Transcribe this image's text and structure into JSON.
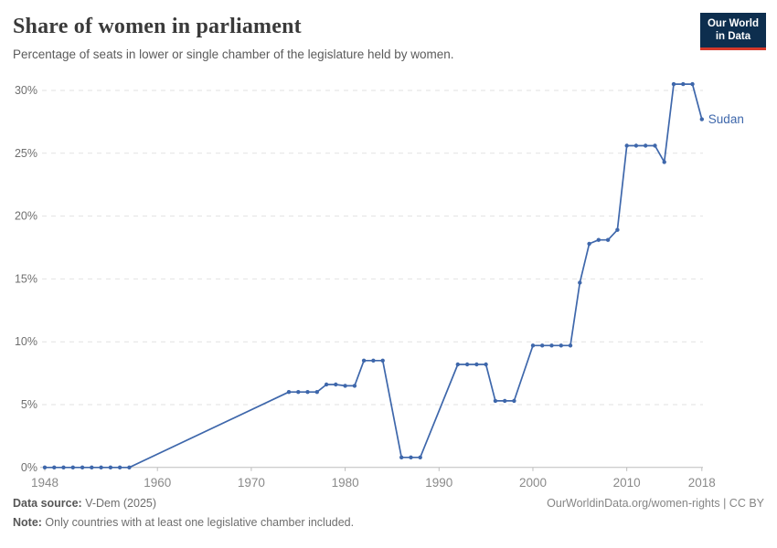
{
  "header": {
    "title": "Share of women in parliament",
    "subtitle": "Percentage of seats in lower or single chamber of the legislature held by women."
  },
  "logo": {
    "line1": "Our World",
    "line2": "in Data",
    "bg_color": "#0d2e4e",
    "accent_color": "#d4382a"
  },
  "footer": {
    "source_label": "Data source:",
    "source_value": " V-Dem (2025)",
    "note_label": "Note:",
    "note_value": " Only countries with at least one legislative chamber included.",
    "link": "OurWorldinData.org/women-rights",
    "separator": " | ",
    "license": "CC BY"
  },
  "chart_data": {
    "type": "line",
    "title": "Share of women in parliament",
    "xlabel": "",
    "ylabel": "",
    "xlim": [
      1948,
      2018
    ],
    "ylim": [
      0,
      30
    ],
    "grid": "horizontal-dashed",
    "legend": "end-of-line-label",
    "x_ticks": [
      1948,
      1960,
      1970,
      1980,
      1990,
      2000,
      2010,
      2018
    ],
    "y_ticks": [
      0,
      5,
      10,
      15,
      20,
      25,
      30
    ],
    "y_tick_suffix": "%",
    "colors": {
      "line": "#3e67ab",
      "gridline": "#e2e2e2",
      "axis": "#bdbdbd",
      "y_tick_label": "#6f6f6f",
      "x_tick_label": "#8a8a8a"
    },
    "series": [
      {
        "name": "Sudan",
        "color": "#3e67ab",
        "points": [
          [
            1948,
            0
          ],
          [
            1949,
            0
          ],
          [
            1950,
            0
          ],
          [
            1951,
            0
          ],
          [
            1952,
            0
          ],
          [
            1953,
            0
          ],
          [
            1954,
            0
          ],
          [
            1955,
            0
          ],
          [
            1956,
            0
          ],
          [
            1957,
            0
          ],
          [
            1974,
            6.0
          ],
          [
            1975,
            6.0
          ],
          [
            1976,
            6.0
          ],
          [
            1977,
            6.0
          ],
          [
            1978,
            6.6
          ],
          [
            1979,
            6.6
          ],
          [
            1980,
            6.5
          ],
          [
            1981,
            6.5
          ],
          [
            1982,
            8.5
          ],
          [
            1983,
            8.5
          ],
          [
            1984,
            8.5
          ],
          [
            1986,
            0.8
          ],
          [
            1987,
            0.8
          ],
          [
            1988,
            0.8
          ],
          [
            1992,
            8.2
          ],
          [
            1993,
            8.2
          ],
          [
            1994,
            8.2
          ],
          [
            1995,
            8.2
          ],
          [
            1996,
            5.3
          ],
          [
            1997,
            5.3
          ],
          [
            1998,
            5.3
          ],
          [
            2000,
            9.7
          ],
          [
            2001,
            9.7
          ],
          [
            2002,
            9.7
          ],
          [
            2003,
            9.7
          ],
          [
            2004,
            9.7
          ],
          [
            2005,
            14.7
          ],
          [
            2006,
            17.8
          ],
          [
            2007,
            18.1
          ],
          [
            2008,
            18.1
          ],
          [
            2009,
            18.9
          ],
          [
            2010,
            25.6
          ],
          [
            2011,
            25.6
          ],
          [
            2012,
            25.6
          ],
          [
            2013,
            25.6
          ],
          [
            2014,
            24.3
          ],
          [
            2015,
            30.5
          ],
          [
            2016,
            30.5
          ],
          [
            2017,
            30.5
          ],
          [
            2018,
            27.7
          ]
        ]
      }
    ]
  }
}
